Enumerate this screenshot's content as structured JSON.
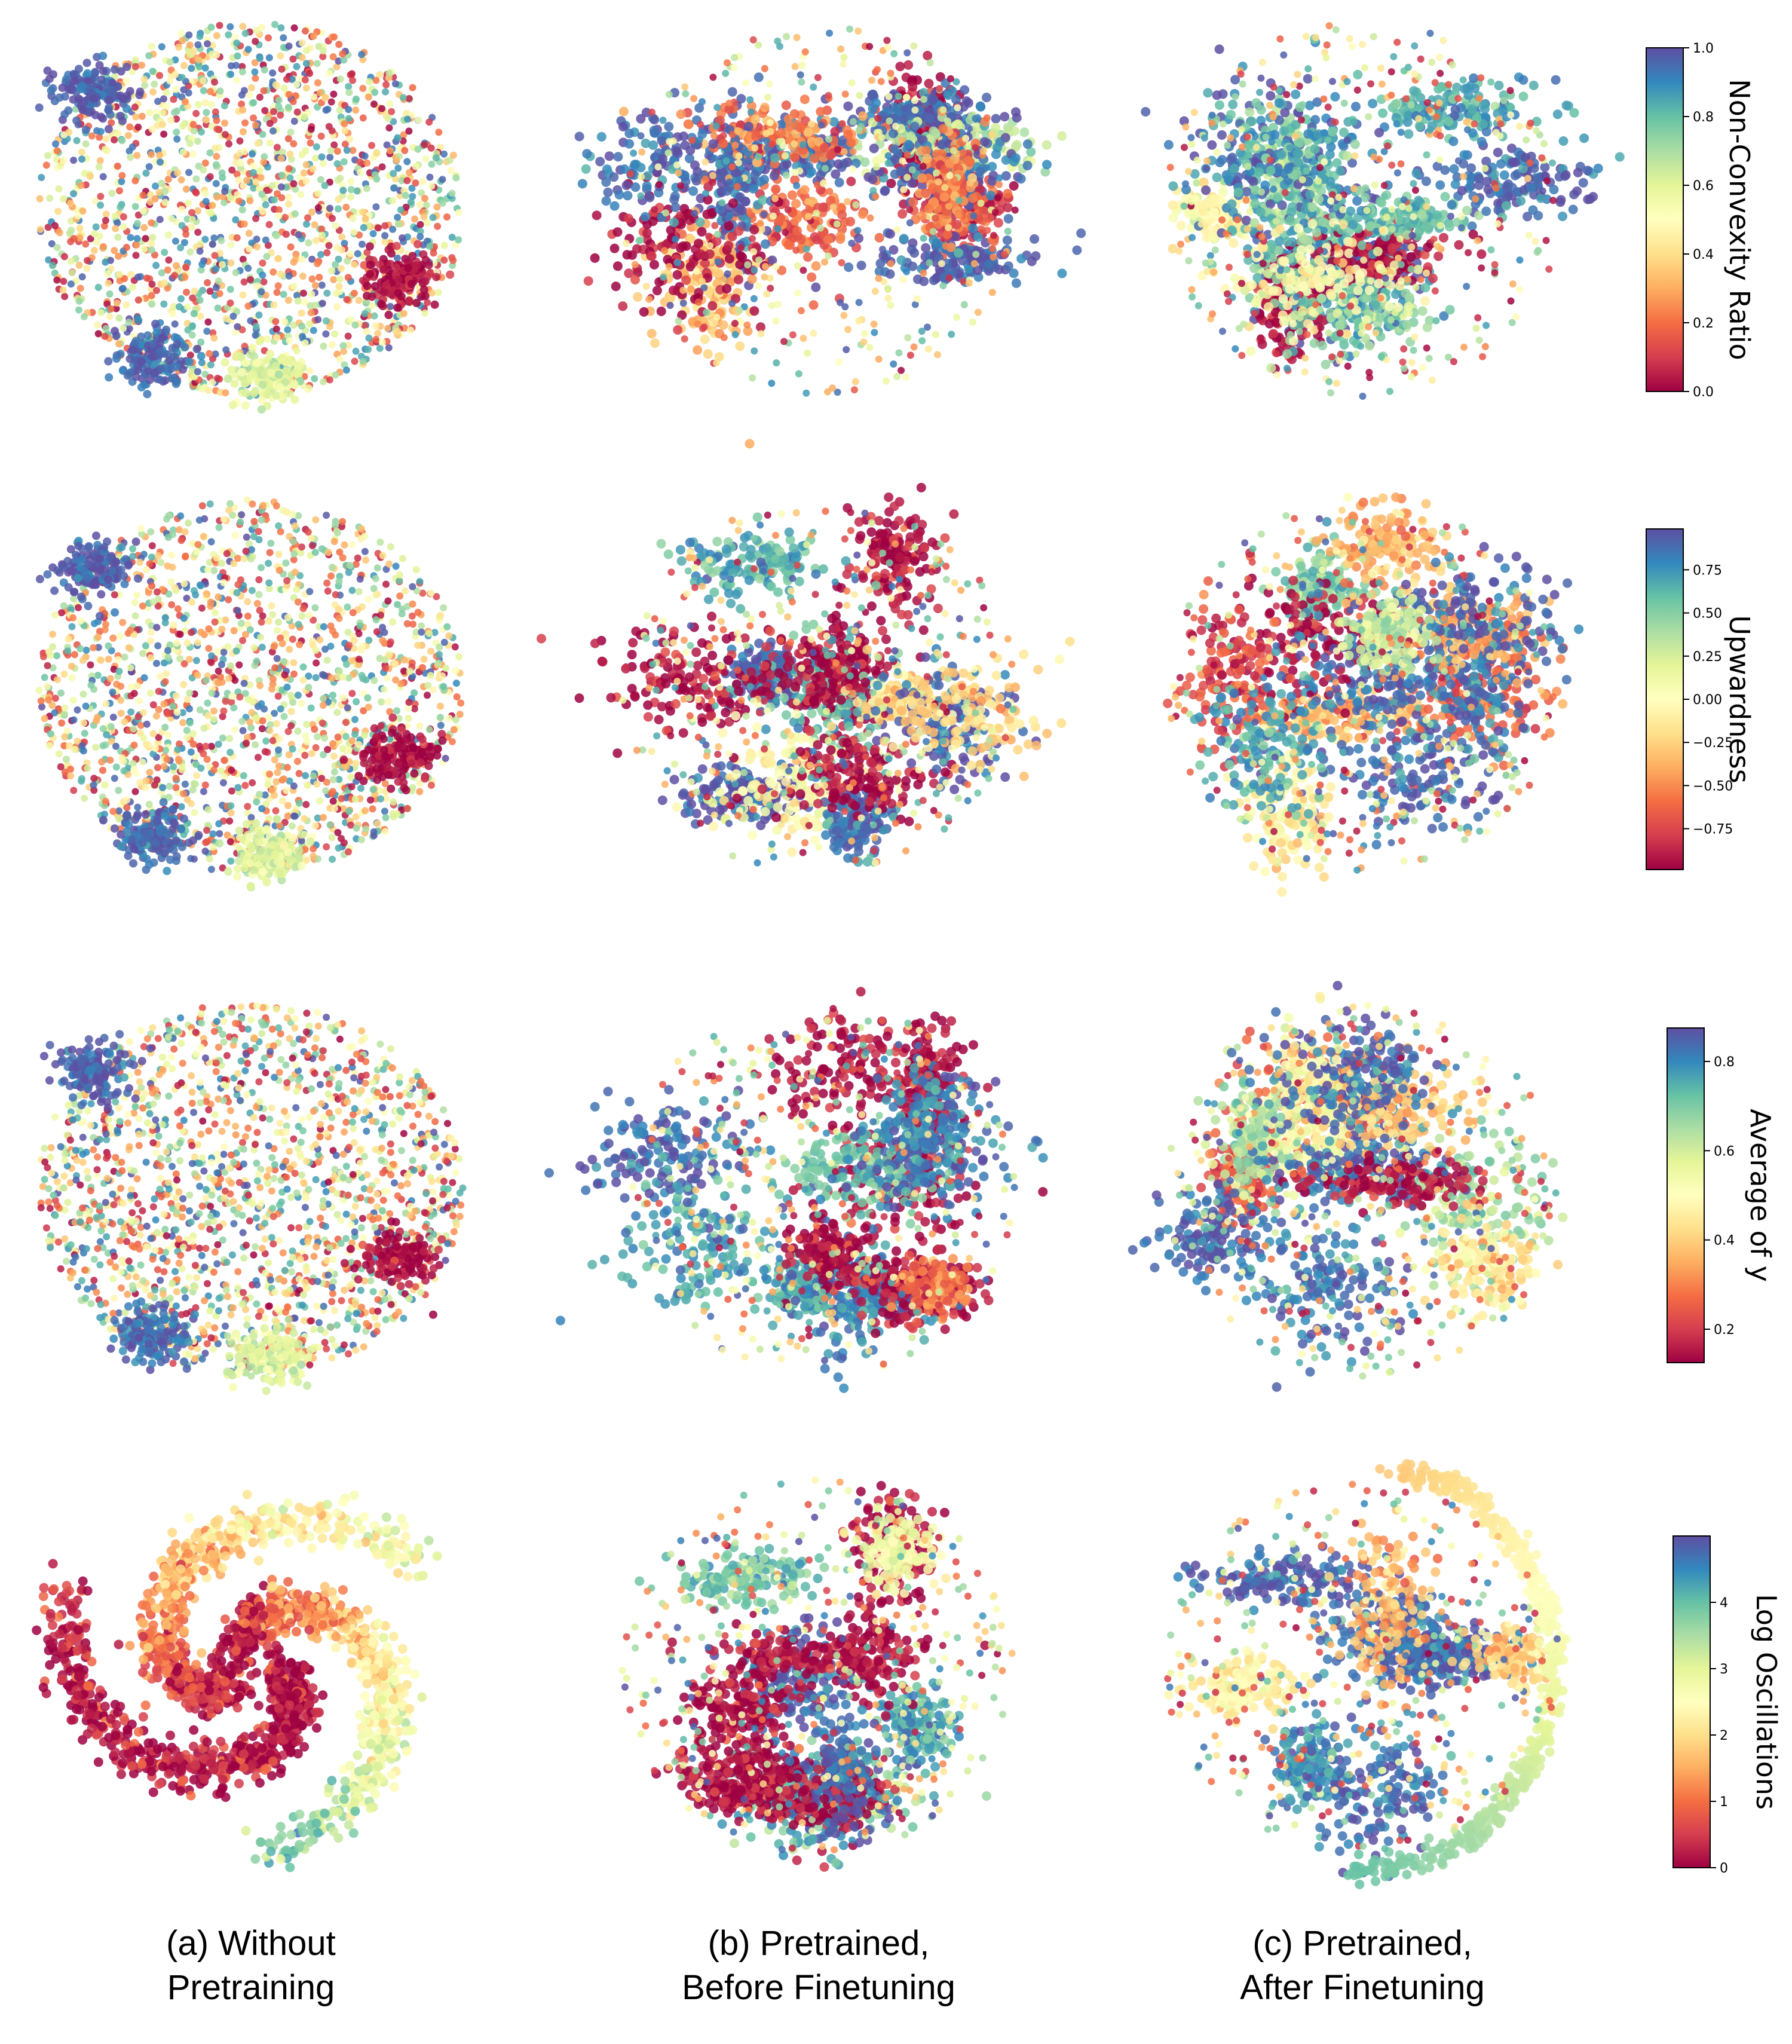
{
  "chart_data": [
    {
      "type": "scatter",
      "panel": "row1-col1",
      "colorbar_label": "Non-Convexity Ratio",
      "colorbar_range": [
        0.0,
        1.0
      ],
      "colorbar_ticks": [
        "0.0",
        "0.2",
        "0.4",
        "0.6",
        "0.8",
        "1.0"
      ],
      "colormap": "Spectral",
      "pattern": "diffuse-cloud"
    },
    {
      "type": "scatter",
      "panel": "row1-col2",
      "colorbar_label": "Non-Convexity Ratio",
      "colormap": "Spectral",
      "pattern": "clusters"
    },
    {
      "type": "scatter",
      "panel": "row1-col3",
      "colorbar_label": "Non-Convexity Ratio",
      "colormap": "Spectral",
      "pattern": "clusters"
    },
    {
      "type": "scatter",
      "panel": "row2-col1",
      "colorbar_label": "Upwardness",
      "colorbar_range": [
        -1.0,
        1.0
      ],
      "colorbar_ticks": [
        "0.75",
        "0.50",
        "0.25",
        "0.00",
        "−0.25",
        "−0.50",
        "−0.75"
      ],
      "colormap": "Spectral",
      "pattern": "diffuse-cloud"
    },
    {
      "type": "scatter",
      "panel": "row2-col2",
      "colorbar_label": "Upwardness",
      "colormap": "Spectral",
      "pattern": "clusters"
    },
    {
      "type": "scatter",
      "panel": "row2-col3",
      "colorbar_label": "Upwardness",
      "colormap": "Spectral",
      "pattern": "clusters"
    },
    {
      "type": "scatter",
      "panel": "row3-col1",
      "colorbar_label": "Average of y",
      "colorbar_range": [
        0.0,
        1.0
      ],
      "colorbar_ticks": [
        "0.8",
        "0.6",
        "0.4",
        "0.2"
      ],
      "colormap": "Spectral",
      "pattern": "diffuse-cloud"
    },
    {
      "type": "scatter",
      "panel": "row3-col2",
      "colorbar_label": "Average of y",
      "colormap": "Spectral",
      "pattern": "clusters"
    },
    {
      "type": "scatter",
      "panel": "row3-col3",
      "colorbar_label": "Average of y",
      "colormap": "Spectral",
      "pattern": "clusters"
    },
    {
      "type": "scatter",
      "panel": "row4-col1",
      "colorbar_label": "Log Oscillations",
      "colorbar_range": [
        0,
        5
      ],
      "colorbar_ticks": [
        "0",
        "1",
        "2",
        "3",
        "4"
      ],
      "colormap": "Spectral",
      "pattern": "spiral-bands"
    },
    {
      "type": "scatter",
      "panel": "row4-col2",
      "colorbar_label": "Log Oscillations",
      "colormap": "Spectral",
      "pattern": "clusters"
    },
    {
      "type": "scatter",
      "panel": "row4-col3",
      "colorbar_label": "Log Oscillations",
      "colormap": "Spectral",
      "pattern": "arc-and-clusters"
    }
  ],
  "colorbars": [
    {
      "label": "Non-Convexity Ratio",
      "ticks": [
        "0.0",
        "0.2",
        "0.4",
        "0.6",
        "0.8",
        "1.0"
      ]
    },
    {
      "label": "Upwardness",
      "ticks": [
        "0.75",
        "0.50",
        "0.25",
        "0.00",
        "−0.25",
        "−0.50",
        "−0.75"
      ]
    },
    {
      "label": "Average of y",
      "ticks": [
        "0.8",
        "0.6",
        "0.4",
        "0.2"
      ]
    },
    {
      "label": "Log Oscillations",
      "ticks": [
        "0",
        "1",
        "2",
        "3",
        "4"
      ]
    }
  ],
  "captions": {
    "a": {
      "line1": "(a) Without",
      "line2": "Pretraining"
    },
    "b": {
      "line1": "(b) Pretrained,",
      "line2": "Before Finetuning"
    },
    "c": {
      "line1": "(c) Pretrained,",
      "line2": "After Finetuning"
    }
  },
  "colormap_stops": [
    "#9e0142",
    "#d53e4f",
    "#f46d43",
    "#fdae61",
    "#fee08b",
    "#ffffbf",
    "#e6f598",
    "#abdda4",
    "#66c2a5",
    "#3288bd",
    "#5e4fa2"
  ]
}
